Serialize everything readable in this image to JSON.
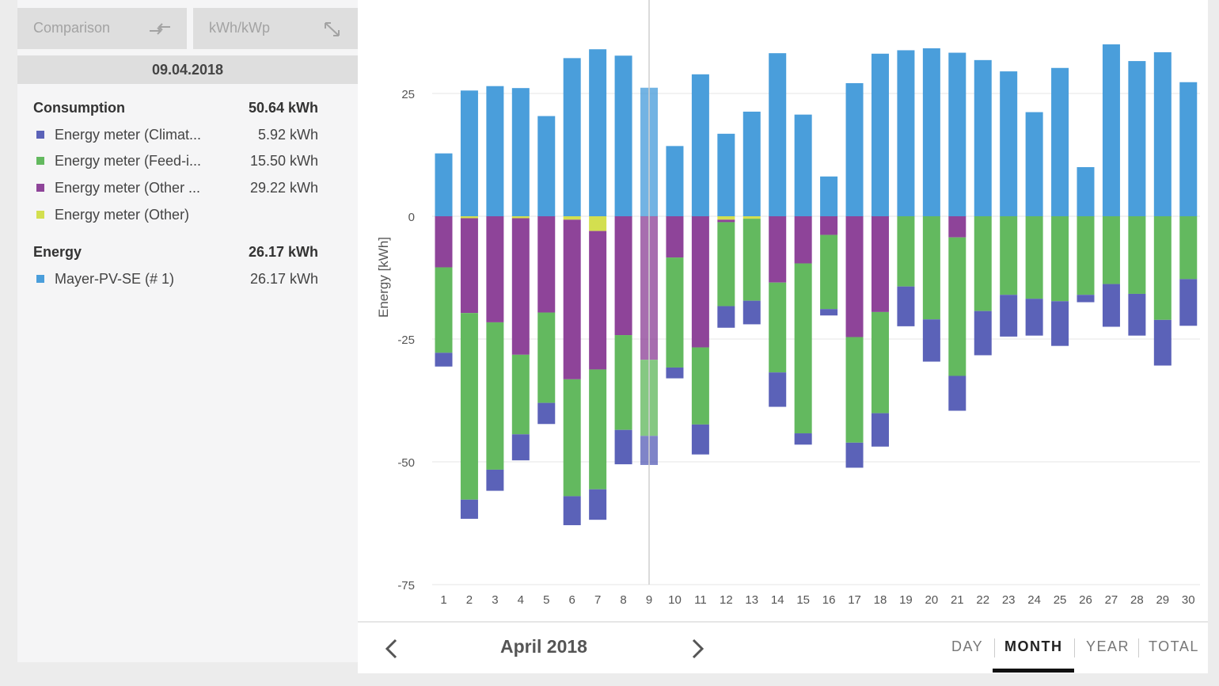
{
  "toolbar": {
    "comparison_label": "Comparison",
    "unit_label": "kWh/kWp"
  },
  "date": "09.04.2018",
  "legend": {
    "consumption": {
      "label": "Consumption",
      "total": "50.64 kWh",
      "items": [
        {
          "name": "Energy meter (Climat...",
          "value": "5.92 kWh",
          "color": "#5b62b8"
        },
        {
          "name": "Energy meter (Feed-i...",
          "value": "15.50 kWh",
          "color": "#63b95f"
        },
        {
          "name": "Energy meter (Other ...",
          "value": "29.22 kWh",
          "color": "#8e4499"
        },
        {
          "name": "Energy meter (Other)",
          "value": "",
          "color": "#d3df4f"
        }
      ]
    },
    "energy": {
      "label": "Energy",
      "total": "26.17 kWh",
      "items": [
        {
          "name": "Mayer-PV-SE (# 1)",
          "value": "26.17 kWh",
          "color": "#4a9edb"
        }
      ]
    }
  },
  "navigation": {
    "period_label": "April 2018",
    "tabs": [
      "DAY",
      "MONTH",
      "YEAR",
      "TOTAL"
    ],
    "active_tab": "MONTH"
  },
  "chart_data": {
    "type": "bar",
    "stacked": true,
    "title": "",
    "xlabel": "",
    "ylabel": "Energy [kWh]",
    "ylim": [
      -75,
      40
    ],
    "yticks": [
      25,
      0,
      -25,
      -50,
      -75
    ],
    "grid": true,
    "highlighted_category": "9",
    "categories": [
      "1",
      "2",
      "3",
      "4",
      "5",
      "6",
      "7",
      "8",
      "9",
      "10",
      "11",
      "12",
      "13",
      "14",
      "15",
      "16",
      "17",
      "18",
      "19",
      "20",
      "21",
      "22",
      "23",
      "24",
      "25",
      "26",
      "27",
      "28",
      "29",
      "30"
    ],
    "series": [
      {
        "name": "Mayer-PV-SE (# 1)",
        "color": "#4a9edb",
        "values": [
          12.8,
          25.6,
          26.5,
          26.1,
          20.4,
          32.2,
          34.0,
          32.7,
          26.17,
          14.3,
          28.9,
          16.8,
          21.3,
          33.2,
          20.7,
          8.1,
          27.1,
          33.1,
          33.8,
          34.2,
          33.3,
          31.8,
          29.5,
          21.2,
          30.2,
          10.0,
          35.0,
          31.6,
          33.4,
          27.3
        ]
      },
      {
        "name": "Energy meter (Other)",
        "color": "#d3df4f",
        "values": [
          0,
          -0.4,
          0,
          -0.4,
          0,
          -0.7,
          -3.0,
          0,
          0,
          0,
          0,
          -0.7,
          -0.5,
          0,
          0,
          0,
          0,
          0,
          0,
          0,
          0,
          0,
          0,
          0,
          0,
          0,
          0,
          0,
          0,
          0
        ]
      },
      {
        "name": "Energy meter (Other ...",
        "color": "#8e4499",
        "values": [
          -10.4,
          -19.3,
          -21.6,
          -27.8,
          -19.6,
          -32.5,
          -28.2,
          -24.2,
          -29.22,
          -8.4,
          -26.7,
          -0.5,
          0,
          -13.5,
          -9.6,
          -3.8,
          -24.6,
          -19.5,
          0,
          0,
          -4.3,
          0,
          0,
          0,
          0,
          0,
          0,
          0,
          0,
          0
        ]
      },
      {
        "name": "Energy meter (Feed-i...",
        "color": "#63b95f",
        "values": [
          -17.4,
          -38.0,
          -30.0,
          -16.2,
          -18.4,
          -23.8,
          -24.4,
          -19.3,
          -15.5,
          -22.4,
          -15.7,
          -17.1,
          -16.7,
          -18.3,
          -34.6,
          -15.1,
          -21.5,
          -20.6,
          -14.3,
          -21.0,
          -28.2,
          -19.3,
          -16.0,
          -16.8,
          -17.3,
          -16.0,
          -13.8,
          -15.8,
          -21.1,
          -12.8
        ]
      },
      {
        "name": "Energy meter (Climat...",
        "color": "#5b62b8",
        "values": [
          -2.8,
          -3.9,
          -4.3,
          -5.3,
          -4.3,
          -5.9,
          -6.2,
          -7.0,
          -5.92,
          -2.2,
          -6.1,
          -4.4,
          -4.8,
          -7.0,
          -2.3,
          -1.3,
          -5.1,
          -6.8,
          -8.1,
          -8.6,
          -7.1,
          -9.0,
          -8.5,
          -7.5,
          -9.1,
          -1.5,
          -8.7,
          -8.5,
          -9.3,
          -9.5
        ]
      }
    ]
  }
}
